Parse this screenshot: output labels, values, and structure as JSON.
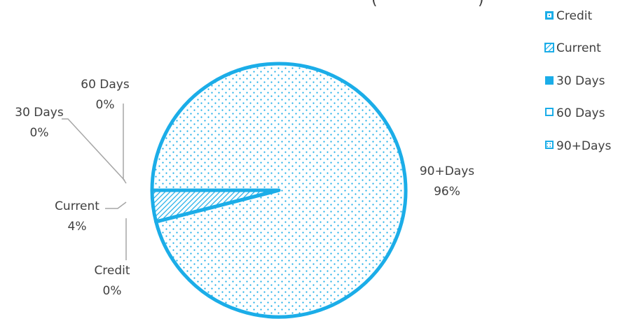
{
  "chart_data": {
    "type": "pie",
    "title_visible_fragment": "(",
    "categories": [
      "Credit",
      "Current",
      "30 Days",
      "60 Days",
      "90+Days"
    ],
    "values": [
      0,
      4,
      0,
      0,
      96
    ],
    "percent_labels": [
      "0%",
      "4%",
      "0%",
      "0%",
      "96%"
    ],
    "legend": {
      "position": "right",
      "entries": [
        "Credit",
        "Current",
        "30 Days",
        "60 Days",
        "90+Days"
      ]
    },
    "colors": {
      "series": "#1BADE8",
      "leader_line": "#A6A6A6",
      "text": "#404040"
    },
    "fill_patterns": [
      "small-dots",
      "diagonal-hatch",
      "solid",
      "outline",
      "dotted"
    ]
  }
}
